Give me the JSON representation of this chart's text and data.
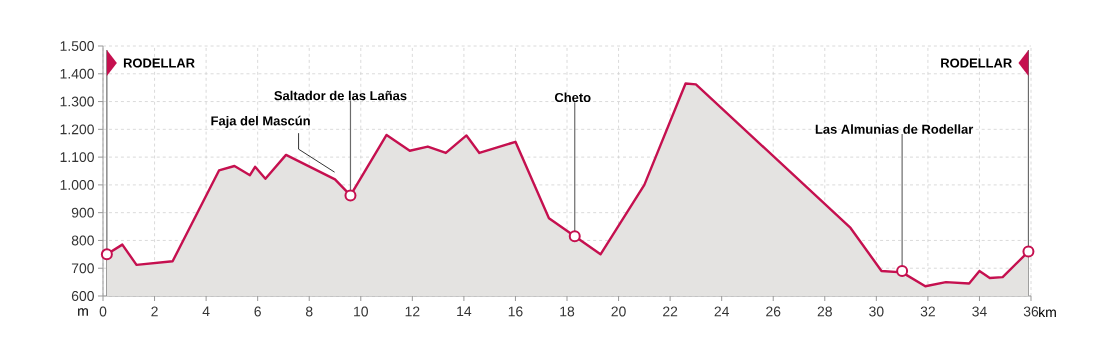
{
  "chart_data": {
    "type": "area",
    "xlabel": "km",
    "ylabel": "m",
    "x": [
      0.15,
      0.75,
      1.3,
      2.7,
      4.5,
      5.1,
      5.7,
      5.9,
      6.3,
      7.1,
      9.0,
      9.6,
      11.0,
      11.9,
      12.6,
      13.3,
      14.1,
      14.6,
      16.0,
      17.3,
      18.3,
      19.3,
      21.0,
      22.6,
      23.0,
      29.0,
      30.2,
      31.0,
      31.9,
      32.7,
      33.6,
      34.0,
      34.4,
      34.9,
      35.9
    ],
    "series": [
      {
        "color": "#c5104f",
        "values": [
          750,
          785,
          712,
          725,
          1052,
          1068,
          1035,
          1065,
          1022,
          1108,
          1020,
          962,
          1180,
          1123,
          1138,
          1115,
          1178,
          1115,
          1155,
          880,
          815,
          750,
          1000,
          1365,
          1362,
          845,
          690,
          685,
          635,
          650,
          645,
          690,
          665,
          668,
          760
        ]
      }
    ],
    "xlim": [
      0,
      36
    ],
    "ylim": [
      600,
      1500
    ],
    "xticks": [
      0,
      2,
      4,
      6,
      8,
      10,
      12,
      14,
      16,
      18,
      20,
      22,
      24,
      26,
      28,
      30,
      32,
      34,
      36
    ],
    "yticks": [
      600,
      700,
      800,
      900,
      {
        "value": 1000,
        "label": "1.000"
      },
      {
        "value": 1100,
        "label": "1.100"
      },
      {
        "value": 1200,
        "label": "1.200"
      },
      {
        "value": 1300,
        "label": "1.300"
      },
      {
        "value": 1400,
        "label": "1.400"
      },
      {
        "value": 1500,
        "label": "1.500"
      }
    ],
    "grid": true,
    "ref_lines": [
      {
        "axis": "x",
        "value": 0.15,
        "label": "RODELLAR"
      },
      {
        "axis": "x",
        "value": 35.9,
        "label": "RODELLAR"
      }
    ],
    "annotations": [
      {
        "text": "Faja del Mascún",
        "x": 9.1,
        "y": 1035
      },
      {
        "text": "Saltador de las Lañas",
        "x": 9.6,
        "y": 962
      },
      {
        "text": "Cheto",
        "x": 18.3,
        "y": 815
      },
      {
        "text": "Las Almunias de Rodellar",
        "x": 31.0,
        "y": 690
      }
    ]
  }
}
